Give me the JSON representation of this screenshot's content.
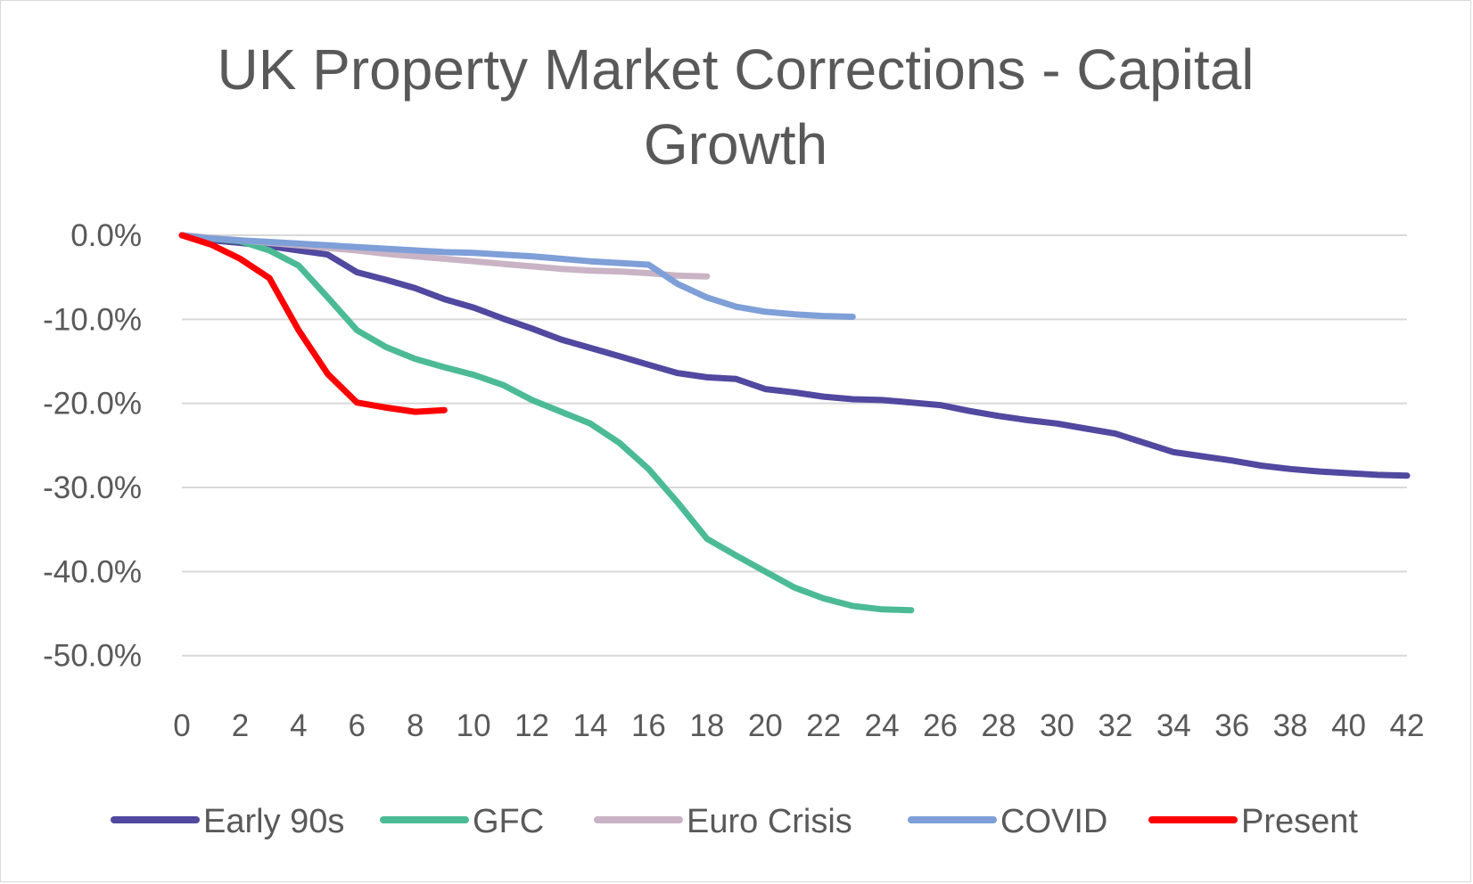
{
  "chart_data": {
    "type": "line",
    "title": "UK Property Market Corrections - Capital Growth",
    "xlabel": "",
    "ylabel": "",
    "xlim": [
      0,
      42
    ],
    "ylim": [
      -55,
      0
    ],
    "x_ticks": [
      "0",
      "2",
      "4",
      "6",
      "8",
      "10",
      "12",
      "14",
      "16",
      "18",
      "20",
      "22",
      "24",
      "26",
      "28",
      "30",
      "32",
      "34",
      "36",
      "38",
      "40",
      "42"
    ],
    "y_ticks": [
      "0.0%",
      "-10.0%",
      "-20.0%",
      "-30.0%",
      "-40.0%",
      "-50.0%"
    ],
    "y_tick_values": [
      0,
      -10,
      -20,
      -30,
      -40,
      -50
    ],
    "grid": true,
    "legend_position": "bottom",
    "series": [
      {
        "name": "Early 90s",
        "color": "#5148A0",
        "values": [
          0,
          -0.6,
          -0.9,
          -1.3,
          -1.8,
          -2.3,
          -4.4,
          -5.3,
          -6.3,
          -7.6,
          -8.6,
          -9.9,
          -11.1,
          -12.4,
          -13.4,
          -14.4,
          -15.4,
          -16.4,
          -16.9,
          -17.1,
          -18.3,
          -18.7,
          -19.2,
          -19.5,
          -19.6,
          -19.9,
          -20.2,
          -20.9,
          -21.5,
          -22.0,
          -22.4,
          -23.0,
          -23.6,
          -24.7,
          -25.8,
          -26.3,
          -26.8,
          -27.4,
          -27.8,
          -28.1,
          -28.3,
          -28.5,
          -28.6
        ]
      },
      {
        "name": "GFC",
        "color": "#4CBB95",
        "values": [
          0,
          -0.4,
          -0.7,
          -1.8,
          -3.6,
          -7.4,
          -11.3,
          -13.3,
          -14.7,
          -15.7,
          -16.6,
          -17.8,
          -19.6,
          -21.0,
          -22.4,
          -24.7,
          -27.8,
          -31.8,
          -36.1,
          -38.1,
          -40.0,
          -41.9,
          -43.2,
          -44.1,
          -44.5,
          -44.6
        ]
      },
      {
        "name": "Euro Crisis",
        "color": "#C9B3C4",
        "values": [
          0,
          -0.3,
          -0.6,
          -0.9,
          -1.2,
          -1.5,
          -1.8,
          -2.2,
          -2.5,
          -2.8,
          -3.1,
          -3.4,
          -3.7,
          -4.0,
          -4.2,
          -4.3,
          -4.5,
          -4.8,
          -4.9
        ]
      },
      {
        "name": "COVID",
        "color": "#7E9FD7",
        "values": [
          0,
          -0.4,
          -0.6,
          -0.8,
          -1.0,
          -1.2,
          -1.4,
          -1.6,
          -1.8,
          -2.0,
          -2.1,
          -2.3,
          -2.5,
          -2.8,
          -3.1,
          -3.3,
          -3.5,
          -5.8,
          -7.4,
          -8.5,
          -9.1,
          -9.4,
          -9.6,
          -9.7
        ]
      },
      {
        "name": "Present",
        "color": "#FF0000",
        "values": [
          0,
          -1.1,
          -2.8,
          -5.1,
          -11.3,
          -16.5,
          -19.9,
          -20.5,
          -21.0,
          -20.8
        ]
      }
    ]
  }
}
